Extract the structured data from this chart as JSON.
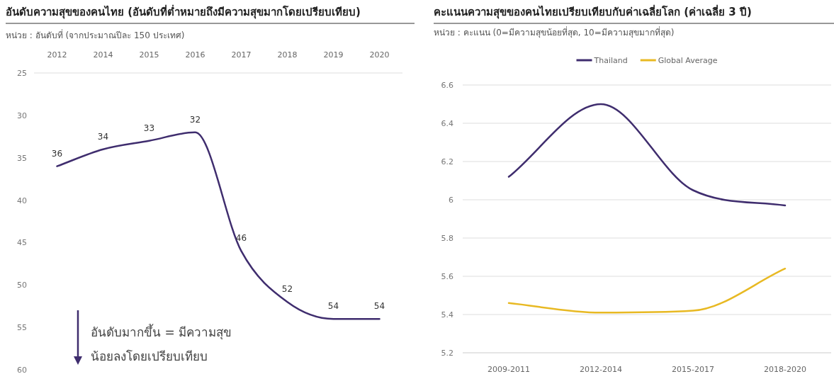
{
  "chart_data": [
    {
      "type": "line",
      "title": "อันดับความสุขของคนไทย (อันดับที่ต่ำหมายถึงมีความสุขมากโดยเปรียบเทียบ)",
      "subtitle": "หน่วย : อันดับที่ (จากประมาณปีละ 150 ประเทศ)",
      "categories": [
        "2012",
        "2014",
        "2015",
        "2016",
        "2017",
        "2018",
        "2019",
        "2020"
      ],
      "series": [
        {
          "color": "#3f2d6e",
          "values": [
            36,
            34,
            33,
            32,
            46,
            52,
            54,
            54
          ]
        }
      ],
      "ylim": [
        60,
        25
      ],
      "yticks": [
        25,
        30,
        35,
        40,
        45,
        50,
        55,
        60
      ],
      "data_labels": true,
      "grid": false,
      "legend": false,
      "annotations": [
        "อันดับมากขึ้น = มีความสุข น้อยลงโดยเปรียบเทียบ"
      ]
    },
    {
      "type": "line",
      "title": "คะแนนความสุขของคนไทยเปรียบเทียบกับค่าเฉลี่ยโลก (ค่าเฉลี่ย 3 ปี)",
      "subtitle": "หน่วย : คะแนน (0=มีความสุขน้อยที่สุด, 10=มีความสุขมากที่สุด)",
      "categories": [
        "2009-2011",
        "2012-2014",
        "2015-2017",
        "2018-2020"
      ],
      "series": [
        {
          "name": "Thailand",
          "color": "#3f2d6e",
          "values": [
            6.12,
            6.5,
            6.05,
            5.97
          ]
        },
        {
          "name": "Global Average",
          "color": "#e8b923",
          "values": [
            5.46,
            5.41,
            5.42,
            5.64
          ]
        }
      ],
      "ylim": [
        5.2,
        6.6
      ],
      "yticks": [
        5.2,
        5.4,
        5.6,
        5.8,
        6,
        6.2,
        6.4,
        6.6
      ],
      "grid": "y",
      "legend": "top"
    }
  ]
}
